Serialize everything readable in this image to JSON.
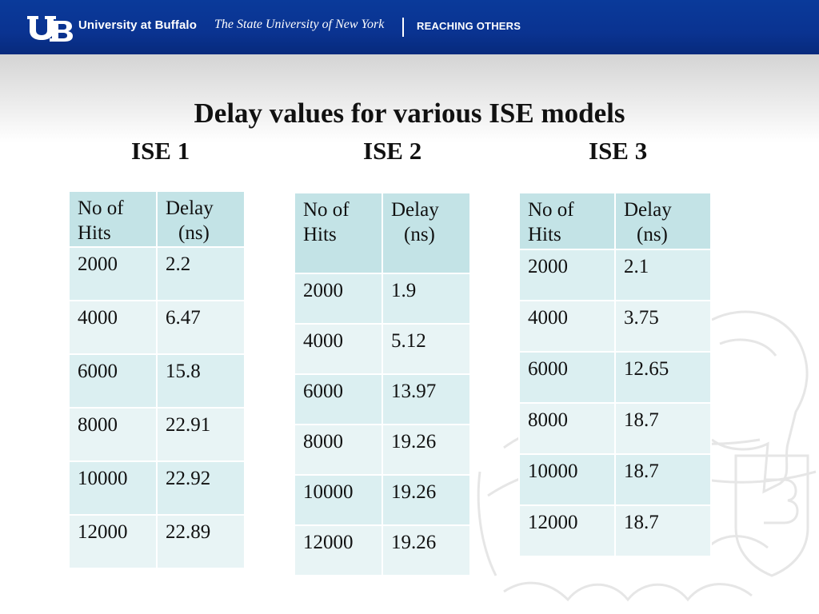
{
  "header": {
    "university": "University at Buffalo",
    "suny": "The State University of New York",
    "tagline": "REACHING OTHERS",
    "logo_text": "UB"
  },
  "slide": {
    "title": "Delay values for various ISE models",
    "labels": [
      "ISE 1",
      "ISE 2",
      "ISE 3"
    ]
  },
  "tables": [
    {
      "col1": "No of Hits",
      "col1_a": "No of",
      "col1_b": "Hits",
      "col2_a": "Delay",
      "col2_b": "(ns)",
      "rows": [
        {
          "hits": "2000",
          "delay": "2.2"
        },
        {
          "hits": "4000",
          "delay": "6.47"
        },
        {
          "hits": "6000",
          "delay": "15.8"
        },
        {
          "hits": "8000",
          "delay": "22.91"
        },
        {
          "hits": "10000",
          "delay": "22.92"
        },
        {
          "hits": "12000",
          "delay": "22.89"
        }
      ]
    },
    {
      "col1_a": "No of",
      "col1_b": "Hits",
      "col2_a": "Delay",
      "col2_b": "(ns)",
      "rows": [
        {
          "hits": "2000",
          "delay": "1.9"
        },
        {
          "hits": "4000",
          "delay": "5.12"
        },
        {
          "hits": "6000",
          "delay": "13.97"
        },
        {
          "hits": "8000",
          "delay": "19.26"
        },
        {
          "hits": "10000",
          "delay": "19.26"
        },
        {
          "hits": "12000",
          "delay": "19.26"
        }
      ]
    },
    {
      "col1_a": "No of",
      "col1_b": "Hits",
      "col2_a": "Delay",
      "col2_b": "(ns)",
      "rows": [
        {
          "hits": "2000",
          "delay": "2.1"
        },
        {
          "hits": "4000",
          "delay": "3.75"
        },
        {
          "hits": "6000",
          "delay": "12.65"
        },
        {
          "hits": "8000",
          "delay": "18.7"
        },
        {
          "hits": "10000",
          "delay": "18.7"
        },
        {
          "hits": "12000",
          "delay": "18.7"
        }
      ]
    }
  ],
  "colors": {
    "banner": "#0a3391",
    "table_header": "#c3e3e6",
    "row_light": "#e8f4f5",
    "row_dark": "#dbeff1"
  }
}
